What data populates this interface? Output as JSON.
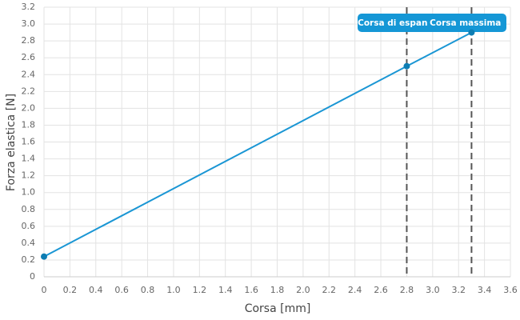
{
  "chart_data": {
    "type": "line",
    "x_label": "Corsa [mm]",
    "y_label": "Forza elastica [N]",
    "x": [
      0,
      2.8,
      3.3
    ],
    "series": [
      {
        "color": "#1a96d4",
        "values": [
          0.24,
          2.5,
          2.9
        ]
      }
    ],
    "xlim": [
      0,
      3.6
    ],
    "xticks": [
      0,
      0.2,
      0.4,
      0.6,
      0.8,
      {
        "value": 1,
        "label": "1.0"
      },
      1.2,
      1.4,
      1.6,
      1.8,
      {
        "value": 2,
        "label": "2.0"
      },
      2.2,
      2.4,
      2.6,
      2.8,
      {
        "value": 3,
        "label": "3.0"
      },
      3.2,
      3.4,
      3.6
    ],
    "ylim": [
      0,
      3.2
    ],
    "yticks": [
      0,
      0.2,
      0.4,
      0.6,
      0.8,
      {
        "value": 1,
        "label": "1.0"
      },
      1.2,
      1.4,
      1.6,
      1.8,
      {
        "value": 2,
        "label": "2.0"
      },
      2.2,
      2.4,
      2.6,
      2.8,
      {
        "value": 3,
        "label": "3.0"
      },
      3.2
    ],
    "grid": true,
    "annotations": [
      {
        "x": 2.8,
        "label": "Corsa di espan"
      },
      {
        "x": 3.3,
        "label": "Corsa massima"
      }
    ]
  }
}
